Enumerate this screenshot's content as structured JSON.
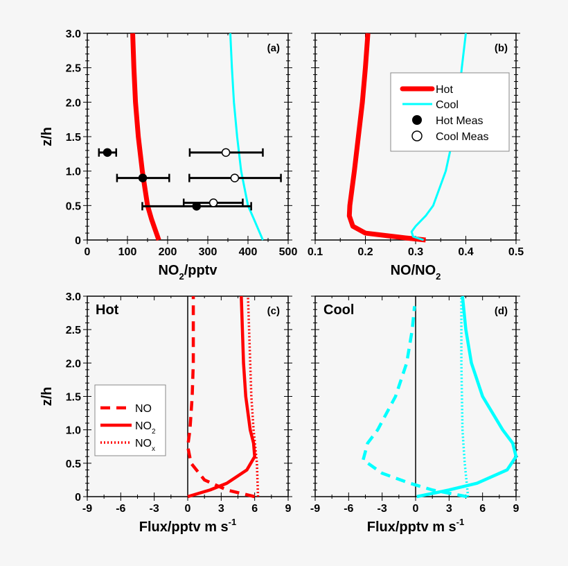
{
  "chart_data": [
    {
      "type": "line",
      "panel_label": "(a)",
      "xlabel": "NO2/pptv",
      "xlabel_main": "NO",
      "xlabel_sub": "2",
      "xlabel_rest": "/pptv",
      "ylabel": "z/h",
      "xlim": [
        0,
        500
      ],
      "ylim": [
        0,
        3.0
      ],
      "xticks": [
        "0",
        "100",
        "200",
        "300",
        "400",
        "500"
      ],
      "yticks": [
        "0",
        "0.5",
        "1.0",
        "1.5",
        "2.0",
        "2.5",
        "3.0"
      ],
      "series": [
        {
          "name": "Hot",
          "color": "#ff0000",
          "style": "thick",
          "x": [
            178,
            160,
            150,
            137,
            127,
            120,
            116,
            113
          ],
          "y": [
            0,
            0.3,
            0.5,
            1.0,
            1.5,
            2.0,
            2.5,
            3.0
          ]
        },
        {
          "name": "Cool",
          "color": "#00ffff",
          "style": "thin",
          "x": [
            437,
            415,
            400,
            383,
            373,
            365,
            360,
            356
          ],
          "y": [
            0,
            0.3,
            0.5,
            1.0,
            1.5,
            2.0,
            2.5,
            3.0
          ]
        }
      ],
      "points": [
        {
          "name": "Hot Meas",
          "fill": "#000000",
          "data": [
            {
              "x": 50,
              "y": 1.27,
              "xmin": 29,
              "xmax": 72
            },
            {
              "x": 138,
              "y": 0.9,
              "xmin": 74,
              "xmax": 204
            },
            {
              "x": 272,
              "y": 0.49,
              "xmin": 137,
              "xmax": 408
            }
          ]
        },
        {
          "name": "Cool Meas",
          "fill": "#ffffff",
          "data": [
            {
              "x": 345,
              "y": 1.27,
              "xmin": 255,
              "xmax": 437
            },
            {
              "x": 367,
              "y": 0.9,
              "xmin": 254,
              "xmax": 482
            },
            {
              "x": 314,
              "y": 0.54,
              "xmin": 240,
              "xmax": 387
            }
          ]
        }
      ]
    },
    {
      "type": "line",
      "panel_label": "(b)",
      "xlabel": "NO/NO2",
      "xlabel_main": "NO/NO",
      "xlabel_sub": "2",
      "xlabel_rest": "",
      "xlim": [
        0.1,
        0.5
      ],
      "ylim": [
        0,
        3.0
      ],
      "xticks": [
        "0.1",
        "0.2",
        "0.3",
        "0.4",
        "0.5"
      ],
      "legend": {
        "placement": "upper-right",
        "entries": [
          "Hot",
          "Cool",
          "Hot Meas",
          "Cool Meas"
        ]
      },
      "series": [
        {
          "name": "Hot",
          "color": "#ff0000",
          "style": "thick",
          "x": [
            0.32,
            0.28,
            0.2,
            0.175,
            0.168,
            0.169,
            0.178,
            0.186,
            0.194,
            0.2,
            0.205
          ],
          "y": [
            0,
            0.03,
            0.1,
            0.2,
            0.35,
            0.5,
            1.0,
            1.5,
            2.0,
            2.5,
            3.0
          ]
        },
        {
          "name": "Cool",
          "color": "#00ffff",
          "style": "thin",
          "x": [
            0.316,
            0.295,
            0.292,
            0.3,
            0.32,
            0.335,
            0.36,
            0.375,
            0.385,
            0.392,
            0.4
          ],
          "y": [
            0,
            0.05,
            0.12,
            0.2,
            0.35,
            0.5,
            1.0,
            1.5,
            2.0,
            2.5,
            3.0
          ]
        }
      ]
    },
    {
      "type": "line",
      "panel_label": "(c)",
      "title": "Hot",
      "xlabel": "Flux/pptv m s-1",
      "xlabel_main": "Flux/pptv m s",
      "xlabel_sup": "-1",
      "ylabel": "z/h",
      "xlim": [
        -9,
        9
      ],
      "ylim": [
        0,
        3.0
      ],
      "xticks": [
        "-9",
        "-6",
        "-3",
        "0",
        "3",
        "6",
        "9"
      ],
      "yticks": [
        "0",
        "0.5",
        "1.0",
        "1.5",
        "2.0",
        "2.5",
        "3.0"
      ],
      "legend": {
        "placement": "left",
        "entries": [
          {
            "main": "NO",
            "sub": ""
          },
          {
            "main": "NO",
            "sub": "2"
          },
          {
            "main": "NO",
            "sub": "x"
          }
        ]
      },
      "series": [
        {
          "name": "NO",
          "color": "#ff0000",
          "style": "dashed",
          "x": [
            6.0,
            3.5,
            1.5,
            0.3,
            0,
            0.2,
            0.4,
            0.5,
            0.5,
            0.5
          ],
          "y": [
            0,
            0.1,
            0.25,
            0.5,
            0.75,
            1.0,
            1.5,
            2.0,
            2.5,
            3.0
          ]
        },
        {
          "name": "NO2",
          "color": "#ff0000",
          "style": "solid",
          "x": [
            0,
            2,
            3.5,
            5.3,
            6.0,
            5.9,
            5.6,
            5.2,
            5.0,
            4.9,
            4.8
          ],
          "y": [
            0,
            0.1,
            0.2,
            0.4,
            0.6,
            0.8,
            1.0,
            1.5,
            2.0,
            2.5,
            3.0
          ]
        },
        {
          "name": "NOx",
          "color": "#ff0000",
          "style": "dotted",
          "x": [
            6.3,
            6.2,
            5.9,
            5.7,
            5.6,
            5.5,
            5.4
          ],
          "y": [
            0,
            0.5,
            1.0,
            1.5,
            2.0,
            2.5,
            3.0
          ]
        }
      ]
    },
    {
      "type": "line",
      "panel_label": "(d)",
      "title": "Cool",
      "xlabel": "Flux/pptv m s-1",
      "xlabel_main": "Flux/pptv m s",
      "xlabel_sup": "-1",
      "xlim": [
        -9,
        9
      ],
      "ylim": [
        0,
        3.0
      ],
      "xticks": [
        "-9",
        "-6",
        "-3",
        "0",
        "3",
        "6",
        "9"
      ],
      "series": [
        {
          "name": "NO",
          "color": "#00ffff",
          "style": "dashed",
          "x": [
            4.6,
            1.5,
            -0.5,
            -3,
            -4.7,
            -4.3,
            -3.4,
            -1.8,
            -0.8,
            -0.3,
            -0.1
          ],
          "y": [
            0,
            0.1,
            0.2,
            0.35,
            0.55,
            0.8,
            1.0,
            1.5,
            2.0,
            2.5,
            2.85
          ]
        },
        {
          "name": "NO2",
          "color": "#00ffff",
          "style": "solid",
          "x": [
            0.1,
            3,
            5.5,
            8.2,
            9.0,
            8.7,
            7.8,
            6.0,
            5.0,
            4.5,
            4.2
          ],
          "y": [
            0,
            0.1,
            0.2,
            0.4,
            0.6,
            0.8,
            1.0,
            1.5,
            2.0,
            2.5,
            3.0
          ]
        },
        {
          "name": "NOx",
          "color": "#00ffff",
          "style": "dotted",
          "x": [
            4.7,
            4.4,
            4.2,
            4.1,
            4.1
          ],
          "y": [
            0,
            0.5,
            1.0,
            2.0,
            3.0
          ]
        }
      ]
    }
  ]
}
